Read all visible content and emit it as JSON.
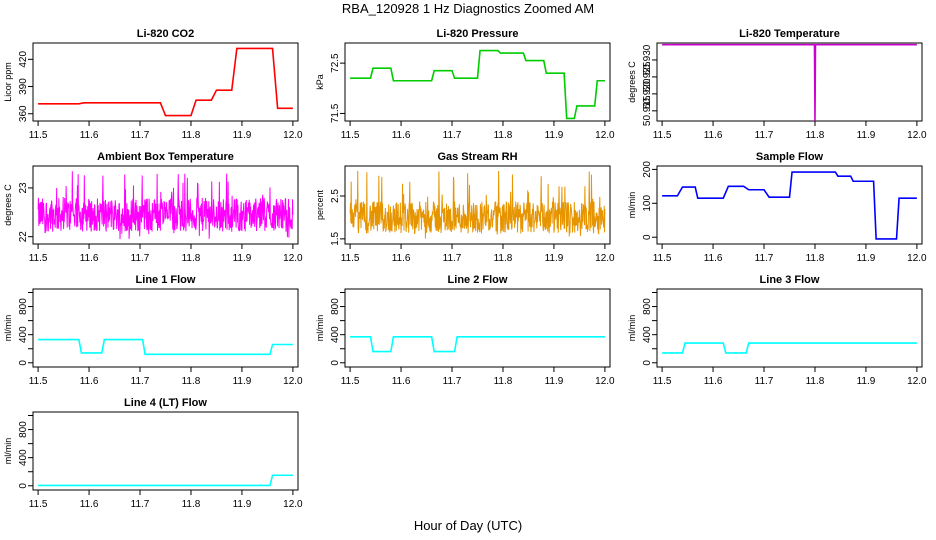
{
  "page": {
    "title": "RBA_120928  1 Hz Diagnostics Zoomed AM",
    "xlabel": "Hour of Day (UTC)"
  },
  "chart_data": [
    {
      "type": "line",
      "title": "Li-820 CO2",
      "ylabel": "Licor ppm",
      "color": "#ff0000",
      "xlim": [
        11.49,
        12.01
      ],
      "ylim": [
        352,
        438
      ],
      "yticks": [
        360,
        390,
        420
      ],
      "xticks": [
        11.5,
        11.6,
        11.7,
        11.8,
        11.9,
        12.0
      ],
      "x": [
        11.5,
        11.58,
        11.59,
        11.74,
        11.75,
        11.8,
        11.81,
        11.84,
        11.85,
        11.88,
        11.89,
        11.96,
        11.97,
        12.0
      ],
      "y": [
        371,
        371,
        372,
        372,
        358,
        358,
        375,
        375,
        386,
        386,
        432,
        432,
        366,
        366
      ]
    },
    {
      "type": "line",
      "title": "Li-820 Pressure",
      "ylabel": "kPa",
      "color": "#00cc00",
      "xlim": [
        11.49,
        12.01
      ],
      "ylim": [
        71.35,
        72.9
      ],
      "yticks": [
        71.5,
        72.5
      ],
      "xticks": [
        11.5,
        11.6,
        11.7,
        11.8,
        11.9,
        12.0
      ],
      "x": [
        11.5,
        11.54,
        11.545,
        11.58,
        11.585,
        11.66,
        11.665,
        11.7,
        11.705,
        11.75,
        11.755,
        11.79,
        11.795,
        11.84,
        11.845,
        11.88,
        11.885,
        11.92,
        11.925,
        11.94,
        11.945,
        11.98,
        11.985,
        12.0
      ],
      "y": [
        72.2,
        72.2,
        72.4,
        72.4,
        72.15,
        72.15,
        72.35,
        72.35,
        72.2,
        72.2,
        72.75,
        72.75,
        72.7,
        72.7,
        72.55,
        72.55,
        72.3,
        72.3,
        71.4,
        71.4,
        71.65,
        71.65,
        72.15,
        72.15
      ]
    },
    {
      "type": "line",
      "title": "Li-820 Temperature",
      "ylabel": "degrees C",
      "color": "#cc00cc",
      "xlim": [
        11.49,
        12.01
      ],
      "ylim": [
        50.912,
        50.935
      ],
      "yticks": [
        50.915,
        50.92,
        50.925,
        50.93
      ],
      "ytick_labels": [
        "50.915",
        "50.920",
        "50.925",
        "50.930"
      ],
      "xticks": [
        11.5,
        11.6,
        11.7,
        11.8,
        11.9,
        12.0
      ],
      "x": [
        11.5,
        11.799,
        11.8,
        11.801,
        12.0
      ],
      "y": [
        50.9345,
        50.9345,
        50.912,
        50.9345,
        50.9345
      ]
    },
    {
      "type": "line",
      "title": "Ambient Box Temperature",
      "ylabel": "degrees C",
      "color": "#ff00ff",
      "xlim": [
        11.49,
        12.01
      ],
      "ylim": [
        21.85,
        23.45
      ],
      "yticks": [
        22.0,
        23.0
      ],
      "xticks": [
        11.5,
        11.6,
        11.7,
        11.8,
        11.9,
        12.0
      ],
      "noise": {
        "center": 22.45,
        "spread": 0.7,
        "min": 21.95,
        "max": 23.35
      }
    },
    {
      "type": "line",
      "title": "Gas Stream RH",
      "ylabel": "percent",
      "color": "#e69500",
      "xlim": [
        11.49,
        12.01
      ],
      "ylim": [
        1.38,
        3.2
      ],
      "yticks": [
        1.5,
        2.5
      ],
      "xticks": [
        11.5,
        11.6,
        11.7,
        11.8,
        11.9,
        12.0
      ],
      "noise": {
        "center": 2.0,
        "spread": 0.75,
        "min": 1.45,
        "max": 3.1
      }
    },
    {
      "type": "line",
      "title": "Sample Flow",
      "ylabel": "ml/min",
      "color": "#0000ff",
      "xlim": [
        11.49,
        12.01
      ],
      "ylim": [
        -20,
        210
      ],
      "yticks": [
        0,
        100,
        200
      ],
      "xticks": [
        11.5,
        11.6,
        11.7,
        11.8,
        11.9,
        12.0
      ],
      "x": [
        11.5,
        11.53,
        11.54,
        11.565,
        11.57,
        11.62,
        11.63,
        11.66,
        11.67,
        11.7,
        11.71,
        11.75,
        11.755,
        11.84,
        11.845,
        11.87,
        11.875,
        11.915,
        11.92,
        11.96,
        11.965,
        12.0
      ],
      "y": [
        122,
        122,
        148,
        148,
        115,
        115,
        150,
        150,
        140,
        140,
        118,
        118,
        192,
        192,
        180,
        180,
        165,
        165,
        -5,
        -5,
        115,
        115
      ]
    },
    {
      "type": "line",
      "title": "Line 1 Flow",
      "ylabel": "ml/min",
      "color": "#00ffff",
      "xlim": [
        11.49,
        12.01
      ],
      "ylim": [
        -60,
        1050
      ],
      "yticks": [
        0,
        400,
        800
      ],
      "yticks_minor": [
        200,
        600,
        1000
      ],
      "xticks": [
        11.5,
        11.6,
        11.7,
        11.8,
        11.9,
        12.0
      ],
      "x": [
        11.5,
        11.58,
        11.585,
        11.625,
        11.63,
        11.705,
        11.71,
        11.955,
        11.96,
        12.0
      ],
      "y": [
        330,
        330,
        140,
        140,
        330,
        330,
        120,
        120,
        260,
        260
      ]
    },
    {
      "type": "line",
      "title": "Line 2 Flow",
      "ylabel": "ml/min",
      "color": "#00ffff",
      "xlim": [
        11.49,
        12.01
      ],
      "ylim": [
        -60,
        1050
      ],
      "yticks": [
        0,
        400,
        800
      ],
      "yticks_minor": [
        200,
        600,
        1000
      ],
      "xticks": [
        11.5,
        11.6,
        11.7,
        11.8,
        11.9,
        12.0
      ],
      "x": [
        11.5,
        11.54,
        11.545,
        11.58,
        11.585,
        11.66,
        11.665,
        11.705,
        11.71,
        12.0
      ],
      "y": [
        370,
        370,
        160,
        160,
        370,
        370,
        160,
        160,
        370,
        370
      ]
    },
    {
      "type": "line",
      "title": "Line 3 Flow",
      "ylabel": "ml/min",
      "color": "#00ffff",
      "xlim": [
        11.49,
        12.01
      ],
      "ylim": [
        -60,
        1050
      ],
      "yticks": [
        0,
        400,
        800
      ],
      "yticks_minor": [
        200,
        600,
        1000
      ],
      "xticks": [
        11.5,
        11.6,
        11.7,
        11.8,
        11.9,
        12.0
      ],
      "x": [
        11.5,
        11.54,
        11.545,
        11.62,
        11.625,
        11.665,
        11.67,
        12.0
      ],
      "y": [
        140,
        140,
        280,
        280,
        140,
        140,
        280,
        280
      ]
    },
    {
      "type": "line",
      "title": "Line 4 (LT) Flow",
      "ylabel": "ml/min",
      "color": "#00ffff",
      "xlim": [
        11.49,
        12.01
      ],
      "ylim": [
        -60,
        1050
      ],
      "yticks": [
        0,
        400,
        800
      ],
      "yticks_minor": [
        200,
        600,
        1000
      ],
      "xticks": [
        11.5,
        11.6,
        11.7,
        11.8,
        11.9,
        12.0
      ],
      "x": [
        11.5,
        11.955,
        11.96,
        12.0
      ],
      "y": [
        5,
        5,
        150,
        150
      ]
    }
  ]
}
